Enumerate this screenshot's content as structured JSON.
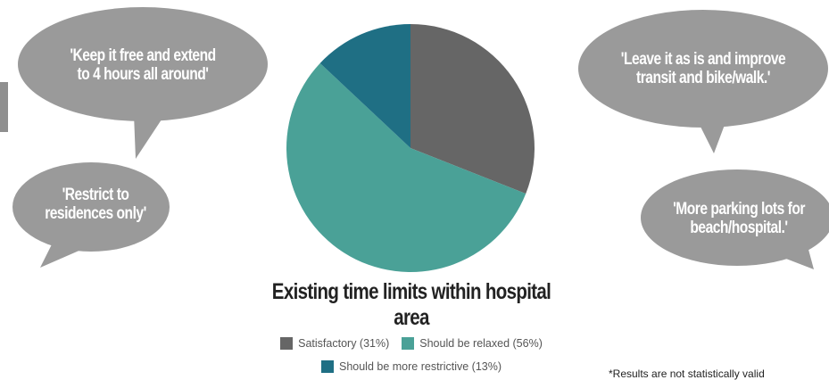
{
  "chart_data": {
    "type": "pie",
    "title": "Existing time limits within hospital area",
    "slices": [
      {
        "label": "Satisfactory",
        "value": 31,
        "color": "#666666",
        "legend": "Satisfactory (31%)"
      },
      {
        "label": "Should be relaxed",
        "value": 56,
        "color": "#4aa197",
        "legend": "Should be relaxed (56%)"
      },
      {
        "label": "Should be more restrictive",
        "value": 13,
        "color": "#1f6f84",
        "legend": "Should be more restrictive (13%)"
      }
    ],
    "legend_position": "bottom"
  },
  "quotes": {
    "top_left": [
      "'Keep it free and extend",
      "to 4 hours all around'"
    ],
    "bottom_left": [
      "'Restrict to",
      "residences only'"
    ],
    "top_right": [
      "'Leave it as is and improve",
      "transit and bike/walk.'"
    ],
    "bottom_right": [
      "'More parking lots for",
      "beach/hospital.'"
    ]
  },
  "footnote": "*Results are not statistically valid",
  "colors": {
    "bubble": "#9a9a9a",
    "bubble_text": "#ffffff"
  }
}
